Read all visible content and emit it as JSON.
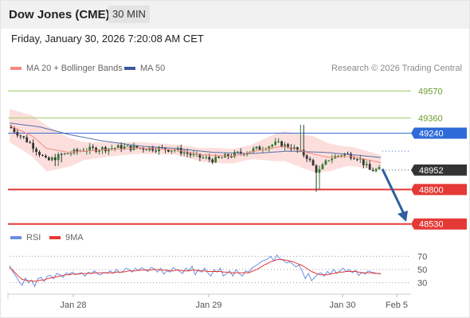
{
  "header": {
    "symbol": "Dow Jones (CME)",
    "timeframe": "30 MIN"
  },
  "timestamp": "Friday, January 30, 2026 7:20:08 AM CET",
  "legend": {
    "ma20": "MA 20 + Bollinger Bands",
    "ma50": "MA 50",
    "rsi": "RSI",
    "rsi_ma": "9MA"
  },
  "credit": "Research © 2026 Trading Central",
  "colors": {
    "ma20": "#f28b82",
    "bollinger_fill": "#fbd9d7",
    "ma50": "#3d5a9e",
    "resistance": "#9ccc65",
    "resistance_text": "#6b9c2e",
    "pivot": "#3b6fd6",
    "pivot_label": "#2f6bd8",
    "support": "#e53935",
    "price_label": "#333333",
    "up_candle": "#2e7d32",
    "down_candle": "#333333",
    "arrow": "#2f5f9e",
    "rsi": "#6a8fe0",
    "rsi_ma": "#e53935"
  },
  "chart_data": [
    {
      "type": "candlestick",
      "title": "Dow Jones (CME)",
      "timeframe": "30 MIN",
      "x_tick_labels": [
        "Jan 28",
        "Jan 29",
        "Jan 30",
        "Feb 5"
      ],
      "ylim": [
        48460,
        49660
      ],
      "levels": [
        {
          "value": 49570,
          "label": "49570",
          "kind": "resistance"
        },
        {
          "value": 49360,
          "label": "49360",
          "kind": "resistance"
        },
        {
          "value": 49240,
          "label": "49240",
          "kind": "pivot"
        },
        {
          "value": 48800,
          "label": "48800",
          "kind": "support"
        },
        {
          "value": 48530,
          "label": "48530",
          "kind": "support"
        }
      ],
      "last_price": {
        "value": 48952,
        "label": "48952"
      },
      "forecast": {
        "direction": "down",
        "from": 48960,
        "to": 48560
      },
      "series": [
        {
          "name": "MA 20 + Bollinger Bands"
        },
        {
          "name": "MA 50"
        }
      ]
    },
    {
      "type": "line",
      "title": "RSI",
      "y_tick_labels": [
        "70",
        "50",
        "30"
      ],
      "ylim": [
        15,
        85
      ],
      "grid_levels": [
        70,
        50,
        30
      ],
      "series": [
        {
          "name": "RSI",
          "values": [
            56,
            47,
            40,
            32,
            26,
            37,
            30,
            34,
            24,
            36,
            38,
            32,
            40,
            41,
            36,
            44,
            42,
            38,
            45,
            43,
            46,
            42,
            44,
            45,
            40,
            46,
            44,
            48,
            43,
            42,
            46,
            44,
            48,
            44,
            50,
            45,
            47,
            52,
            50,
            46,
            52,
            48,
            53,
            50,
            47,
            53,
            51,
            46,
            52,
            43,
            48,
            46,
            53,
            50,
            47,
            44,
            52,
            48,
            55,
            42,
            50,
            46,
            52,
            45,
            40,
            50,
            46,
            52,
            40,
            44,
            48,
            40,
            50,
            44,
            40,
            48,
            46,
            52,
            55,
            58,
            62,
            64,
            66,
            70,
            63,
            72,
            66,
            64,
            60,
            62,
            58,
            54,
            57,
            48,
            36,
            44,
            33,
            38,
            43,
            45,
            40,
            47,
            43,
            50,
            44,
            48,
            52,
            47,
            50,
            45,
            49,
            41,
            46,
            43,
            48,
            46,
            45,
            44,
            43
          ]
        },
        {
          "name": "9MA",
          "values": [
            53,
            49,
            44,
            39,
            35,
            34,
            33,
            33,
            32,
            33,
            34,
            34,
            36,
            37,
            38,
            39,
            40,
            41,
            42,
            42,
            43,
            43,
            43,
            44,
            44,
            44,
            44,
            45,
            45,
            45,
            45,
            45,
            45,
            45,
            46,
            46,
            46,
            47,
            48,
            48,
            48,
            49,
            49,
            49,
            49,
            49,
            50,
            50,
            49,
            49,
            49,
            48,
            48,
            49,
            49,
            48,
            48,
            48,
            49,
            49,
            48,
            48,
            48,
            47,
            47,
            47,
            47,
            47,
            46,
            46,
            45,
            45,
            45,
            45,
            45,
            45,
            45,
            47,
            49,
            51,
            54,
            57,
            59,
            62,
            63,
            65,
            65,
            65,
            64,
            63,
            62,
            60,
            58,
            56,
            53,
            50,
            47,
            45,
            43,
            42,
            42,
            42,
            43,
            44,
            45,
            46,
            46,
            47,
            47,
            47,
            47,
            46,
            45,
            45,
            45,
            45,
            44,
            44,
            44
          ]
        }
      ]
    }
  ]
}
